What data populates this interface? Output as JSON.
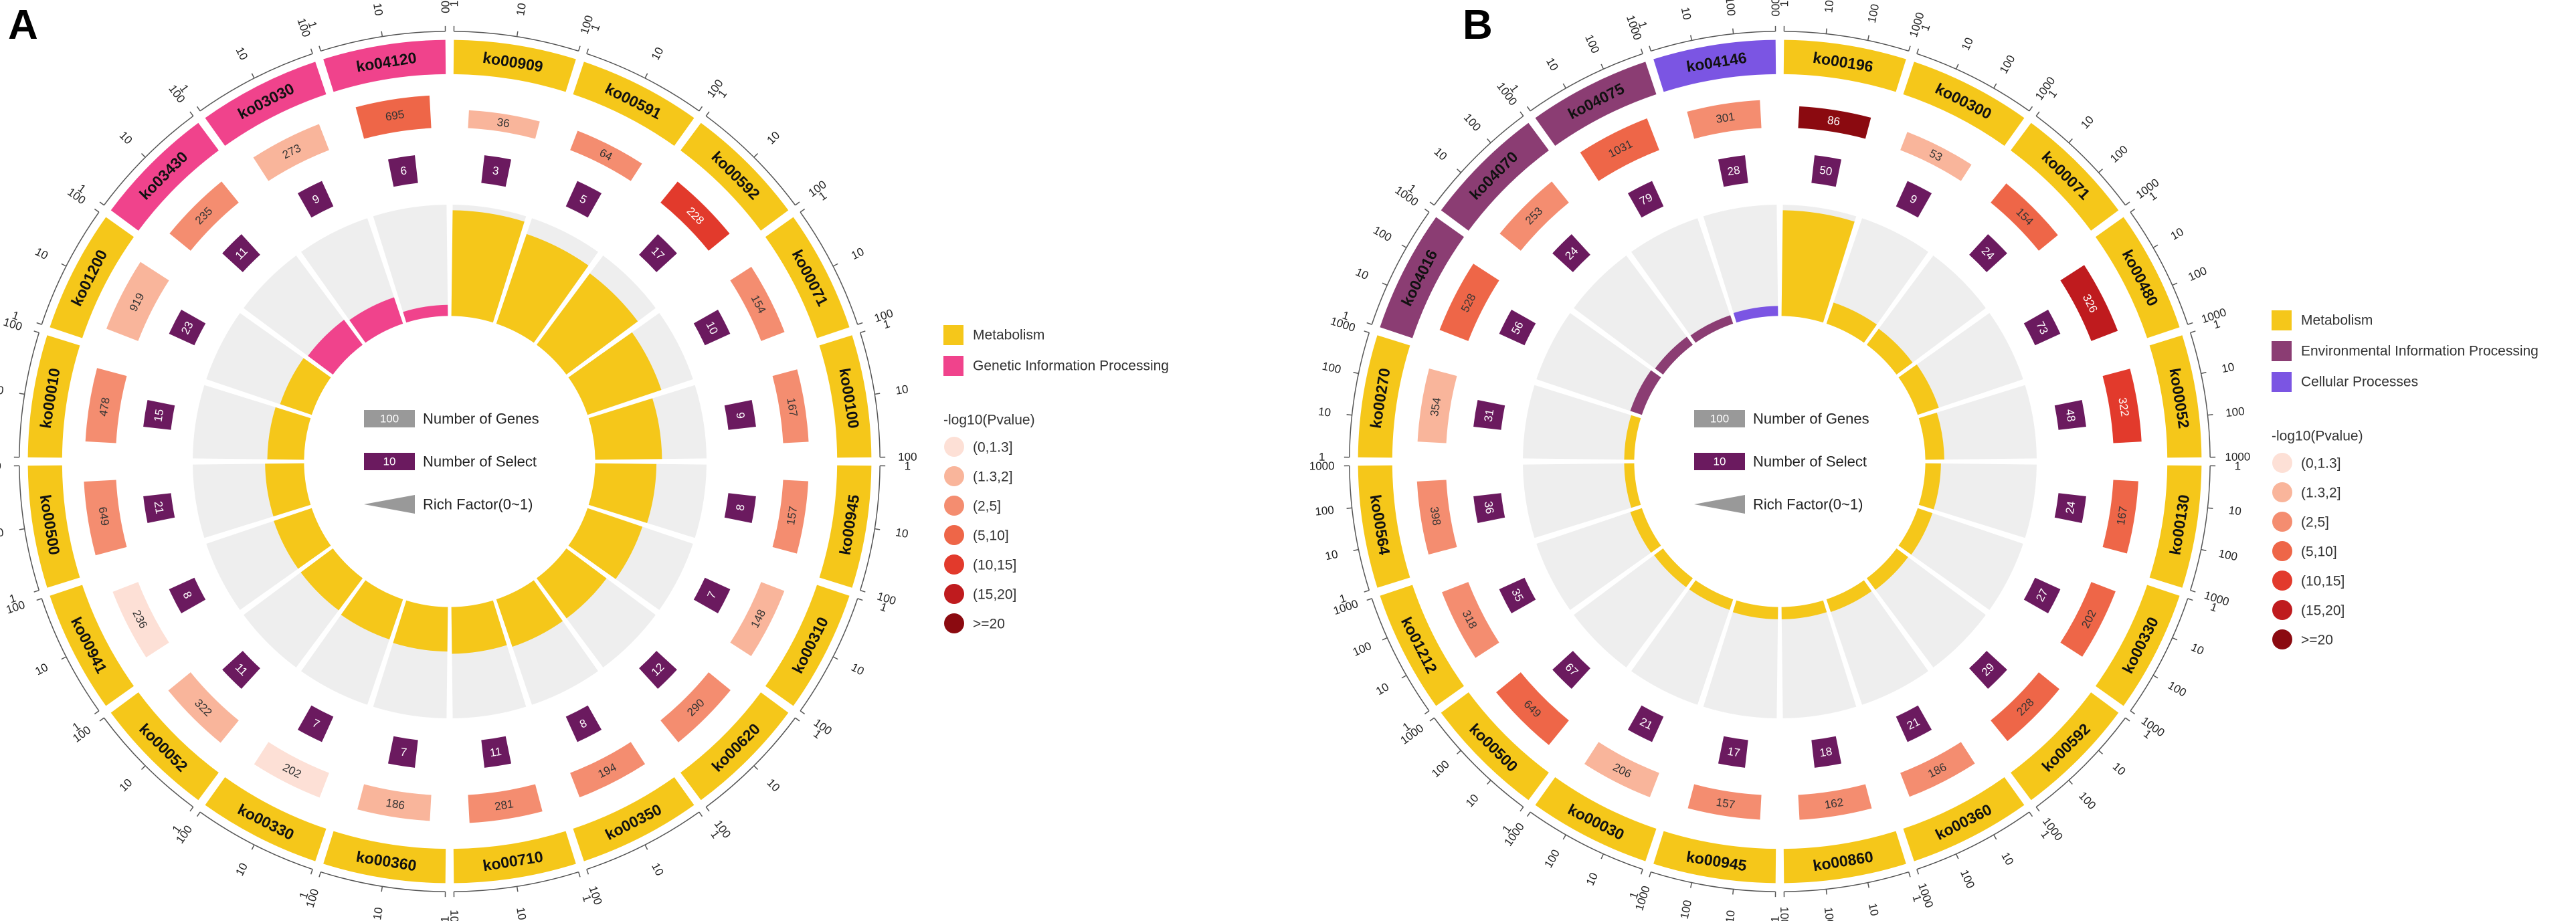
{
  "chart_data": [
    {
      "type": "circular-bar",
      "panel_label": "A",
      "legend_categories": [
        {
          "name": "Metabolism",
          "color": "#f5c71a"
        },
        {
          "name": "Genetic Information Processing",
          "color": "#f0438c"
        }
      ],
      "terms": [
        {
          "id": "ko00909",
          "category": "Metabolism",
          "genes": 36,
          "select": 3,
          "rich_factor": 0.95,
          "pval_bin": 1
        },
        {
          "id": "ko00591",
          "category": "Metabolism",
          "genes": 64,
          "select": 5,
          "rich_factor": 0.85,
          "pval_bin": 2
        },
        {
          "id": "ko00592",
          "category": "Metabolism",
          "genes": 228,
          "select": 17,
          "rich_factor": 0.8,
          "pval_bin": 4
        },
        {
          "id": "ko00071",
          "category": "Metabolism",
          "genes": 154,
          "select": 10,
          "rich_factor": 0.7,
          "pval_bin": 2
        },
        {
          "id": "ko00100",
          "category": "Metabolism",
          "genes": 167,
          "select": 9,
          "rich_factor": 0.6,
          "pval_bin": 2
        },
        {
          "id": "ko00945",
          "category": "Metabolism",
          "genes": 157,
          "select": 8,
          "rich_factor": 0.55,
          "pval_bin": 2
        },
        {
          "id": "ko00310",
          "category": "Metabolism",
          "genes": 148,
          "select": 7,
          "rich_factor": 0.52,
          "pval_bin": 1
        },
        {
          "id": "ko00620",
          "category": "Metabolism",
          "genes": 290,
          "select": 12,
          "rich_factor": 0.45,
          "pval_bin": 2
        },
        {
          "id": "ko00350",
          "category": "Metabolism",
          "genes": 194,
          "select": 8,
          "rich_factor": 0.45,
          "pval_bin": 2
        },
        {
          "id": "ko00710",
          "category": "Metabolism",
          "genes": 281,
          "select": 11,
          "rich_factor": 0.42,
          "pval_bin": 2
        },
        {
          "id": "ko00360",
          "category": "Metabolism",
          "genes": 186,
          "select": 7,
          "rich_factor": 0.4,
          "pval_bin": 1
        },
        {
          "id": "ko00330",
          "category": "Metabolism",
          "genes": 202,
          "select": 7,
          "rich_factor": 0.38,
          "pval_bin": 0
        },
        {
          "id": "ko00052",
          "category": "Metabolism",
          "genes": 322,
          "select": 11,
          "rich_factor": 0.36,
          "pval_bin": 1
        },
        {
          "id": "ko00941",
          "category": "Metabolism",
          "genes": 236,
          "select": 8,
          "rich_factor": 0.36,
          "pval_bin": 0
        },
        {
          "id": "ko00500",
          "category": "Metabolism",
          "genes": 649,
          "select": 21,
          "rich_factor": 0.35,
          "pval_bin": 2
        },
        {
          "id": "ko00010",
          "category": "Metabolism",
          "genes": 478,
          "select": 15,
          "rich_factor": 0.33,
          "pval_bin": 2
        },
        {
          "id": "ko01200",
          "category": "Metabolism",
          "genes": 919,
          "select": 23,
          "rich_factor": 0.3,
          "pval_bin": 1
        },
        {
          "id": "ko03430",
          "category": "Genetic Information Processing",
          "genes": 235,
          "select": 11,
          "rich_factor": 0.28,
          "pval_bin": 2
        },
        {
          "id": "ko03030",
          "category": "Genetic Information Processing",
          "genes": 273,
          "select": 9,
          "rich_factor": 0.25,
          "pval_bin": 1
        },
        {
          "id": "ko04120",
          "category": "Genetic Information Processing",
          "genes": 695,
          "select": 6,
          "rich_factor": 0.1,
          "pval_bin": 3
        }
      ]
    },
    {
      "type": "circular-bar",
      "panel_label": "B",
      "legend_categories": [
        {
          "name": "Metabolism",
          "color": "#f5c71a"
        },
        {
          "name": "Environmental Information Processing",
          "color": "#8b3d73"
        },
        {
          "name": "Cellular Processes",
          "color": "#7b55e3"
        }
      ],
      "terms": [
        {
          "id": "ko00196",
          "category": "Metabolism",
          "genes": 86,
          "select": 50,
          "rich_factor": 0.95,
          "pval_bin": 6
        },
        {
          "id": "ko00300",
          "category": "Metabolism",
          "genes": 53,
          "select": 9,
          "rich_factor": 0.2,
          "pval_bin": 1
        },
        {
          "id": "ko00071",
          "category": "Metabolism",
          "genes": 154,
          "select": 24,
          "rich_factor": 0.18,
          "pval_bin": 3
        },
        {
          "id": "ko00480",
          "category": "Metabolism",
          "genes": 326,
          "select": 73,
          "rich_factor": 0.2,
          "pval_bin": 5
        },
        {
          "id": "ko00052",
          "category": "Metabolism",
          "genes": 322,
          "select": 48,
          "rich_factor": 0.17,
          "pval_bin": 4
        },
        {
          "id": "ko00130",
          "category": "Metabolism",
          "genes": 167,
          "select": 24,
          "rich_factor": 0.14,
          "pval_bin": 3
        },
        {
          "id": "ko00330",
          "category": "Metabolism",
          "genes": 202,
          "select": 27,
          "rich_factor": 0.14,
          "pval_bin": 3
        },
        {
          "id": "ko00592",
          "category": "Metabolism",
          "genes": 228,
          "select": 29,
          "rich_factor": 0.13,
          "pval_bin": 3
        },
        {
          "id": "ko00360",
          "category": "Metabolism",
          "genes": 186,
          "select": 21,
          "rich_factor": 0.12,
          "pval_bin": 2
        },
        {
          "id": "ko00860",
          "category": "Metabolism",
          "genes": 162,
          "select": 18,
          "rich_factor": 0.11,
          "pval_bin": 2
        },
        {
          "id": "ko00945",
          "category": "Metabolism",
          "genes": 157,
          "select": 17,
          "rich_factor": 0.11,
          "pval_bin": 2
        },
        {
          "id": "ko00030",
          "category": "Metabolism",
          "genes": 206,
          "select": 21,
          "rich_factor": 0.1,
          "pval_bin": 1
        },
        {
          "id": "ko00500",
          "category": "Metabolism",
          "genes": 649,
          "select": 67,
          "rich_factor": 0.1,
          "pval_bin": 3
        },
        {
          "id": "ko01212",
          "category": "Metabolism",
          "genes": 318,
          "select": 35,
          "rich_factor": 0.11,
          "pval_bin": 2
        },
        {
          "id": "ko00564",
          "category": "Metabolism",
          "genes": 398,
          "select": 36,
          "rich_factor": 0.09,
          "pval_bin": 2
        },
        {
          "id": "ko00270",
          "category": "Metabolism",
          "genes": 354,
          "select": 31,
          "rich_factor": 0.09,
          "pval_bin": 1
        },
        {
          "id": "ko04016",
          "category": "Environmental Information Processing",
          "genes": 528,
          "select": 56,
          "rich_factor": 0.11,
          "pval_bin": 3
        },
        {
          "id": "ko04070",
          "category": "Environmental Information Processing",
          "genes": 253,
          "select": 24,
          "rich_factor": 0.09,
          "pval_bin": 2
        },
        {
          "id": "ko04075",
          "category": "Environmental Information Processing",
          "genes": 1031,
          "select": 79,
          "rich_factor": 0.08,
          "pval_bin": 3
        },
        {
          "id": "ko04146",
          "category": "Cellular Processes",
          "genes": 301,
          "select": 28,
          "rich_factor": 0.09,
          "pval_bin": 2
        }
      ]
    }
  ],
  "shared": {
    "center_legend": {
      "genes_label": "Number of Genes",
      "genes_box": "100",
      "select_label": "Number of Select",
      "select_box": "10",
      "rich_label": "Rich Factor(0~1)"
    },
    "pvalue_legend": {
      "title": "-log10(Pvalue)",
      "bins": [
        "(0,1.3]",
        "(1.3,2]",
        "(2,5]",
        "(5,10]",
        "(10,15]",
        "(15,20]",
        ">=20"
      ],
      "colors": [
        "#fde0d6",
        "#f9b59b",
        "#f48d70",
        "#ee6648",
        "#e23a2c",
        "#bf1b1e",
        "#8b0a10"
      ]
    },
    "scale_ticks": [
      "1",
      "10",
      "100"
    ],
    "scale_ticks_b": [
      "1",
      "10",
      "100",
      "1000"
    ],
    "colors": {
      "select_box": "#6b1a5f",
      "rich_bg": "#eeeeee",
      "center_gray": "#999999"
    }
  }
}
